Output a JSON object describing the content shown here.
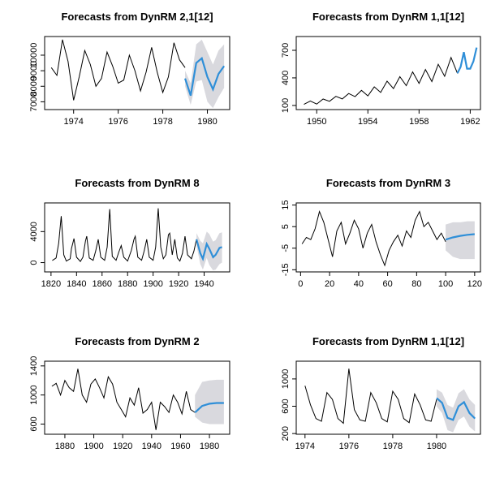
{
  "chart_data": [
    {
      "type": "line",
      "title": "Forecasts from DynRM 2,1[12]",
      "band_color": "#d9d9de",
      "xlim": [
        1972.7,
        1981.0
      ],
      "xticks": [
        1974,
        1976,
        1978,
        1980
      ],
      "ylim": [
        6500,
        11200
      ],
      "yticks": [
        7000,
        8000,
        9000,
        10000
      ],
      "series": [
        {
          "color": "#000000",
          "x": [
            1973,
            1973.25,
            1973.5,
            1973.75,
            1974,
            1974.25,
            1974.5,
            1974.75,
            1975,
            1975.25,
            1975.5,
            1975.75,
            1976,
            1976.25,
            1976.5,
            1976.75,
            1977,
            1977.25,
            1977.5,
            1977.75,
            1978,
            1978.25,
            1978.5,
            1978.75,
            1979
          ],
          "values": [
            9200,
            8700,
            11000,
            9600,
            7100,
            8600,
            10300,
            9400,
            8000,
            8500,
            10200,
            9300,
            8200,
            8400,
            10000,
            9000,
            7700,
            8900,
            10500,
            8900,
            7600,
            8600,
            10800,
            9700,
            9200
          ]
        },
        {
          "color": "#2f8fd8",
          "x": [
            1979,
            1979.25,
            1979.5,
            1979.75,
            1980,
            1980.25,
            1980.5,
            1980.75
          ],
          "values": [
            8500,
            7400,
            9500,
            9800,
            8600,
            7800,
            8800,
            9300
          ],
          "lower": [
            8000,
            6800,
            8300,
            8400,
            7000,
            6600,
            7300,
            7900
          ],
          "upper": [
            9000,
            8200,
            10700,
            11000,
            10200,
            9400,
            10300,
            10700
          ]
        }
      ]
    },
    {
      "type": "line",
      "title": "Forecasts from DynRM 1,1[12]",
      "band_color": "#d9d9de",
      "xlim": [
        1948.4,
        1962.8
      ],
      "xticks": [
        1950,
        1954,
        1958,
        1962
      ],
      "ylim": [
        55,
        850
      ],
      "yticks": [
        100,
        400,
        700
      ],
      "series": [
        {
          "color": "#000000",
          "x": [
            1949,
            1949.5,
            1950,
            1950.5,
            1951,
            1951.5,
            1952,
            1952.5,
            1953,
            1953.5,
            1954,
            1954.5,
            1955,
            1955.5,
            1956,
            1956.5,
            1957,
            1957.5,
            1958,
            1958.5,
            1959,
            1959.5,
            1960,
            1960.5,
            1961
          ],
          "values": [
            112,
            148,
            115,
            170,
            145,
            199,
            171,
            230,
            196,
            264,
            204,
            302,
            242,
            364,
            284,
            413,
            315,
            465,
            340,
            491,
            360,
            548,
            417,
            622,
            450
          ]
        },
        {
          "color": "#2f8fd8",
          "x": [
            1961,
            1961.25,
            1961.5,
            1961.75,
            1962,
            1962.25,
            1962.5
          ],
          "values": [
            450,
            520,
            680,
            500,
            500,
            580,
            730
          ]
        }
      ]
    },
    {
      "type": "line",
      "title": "Forecasts from DynRM 8",
      "band_color": "#d9d9de",
      "xlim": [
        1815,
        1960
      ],
      "xticks": [
        1820,
        1840,
        1860,
        1880,
        1900,
        1920,
        1940
      ],
      "ylim": [
        -1200,
        7700
      ],
      "yticks": [
        0,
        4000
      ],
      "series": [
        {
          "color": "#000000",
          "x": [
            1821,
            1824,
            1826,
            1828,
            1830,
            1832,
            1835,
            1836,
            1838,
            1840,
            1843,
            1845,
            1847,
            1848,
            1850,
            1853,
            1855,
            1857,
            1859,
            1862,
            1864,
            1866,
            1868,
            1871,
            1873,
            1875,
            1877,
            1880,
            1883,
            1885,
            1886,
            1888,
            1891,
            1893,
            1895,
            1897,
            1900,
            1902,
            1904,
            1906,
            1908,
            1910,
            1912,
            1913,
            1915,
            1917,
            1919,
            1921,
            1923,
            1925,
            1927,
            1930,
            1932,
            1934
          ],
          "values": [
            270,
            600,
            2500,
            6000,
            1000,
            200,
            500,
            1800,
            3100,
            700,
            150,
            700,
            2800,
            3400,
            600,
            300,
            1500,
            3000,
            700,
            300,
            2000,
            6900,
            800,
            300,
            1300,
            2200,
            700,
            200,
            1600,
            3000,
            3400,
            700,
            300,
            1500,
            3000,
            700,
            300,
            2000,
            7000,
            2000,
            500,
            1000,
            3600,
            3800,
            1000,
            3000,
            600,
            200,
            1200,
            3400,
            1000,
            500,
            1500,
            3000
          ]
        },
        {
          "color": "#2f8fd8",
          "x": [
            1934,
            1937,
            1939,
            1942,
            1944,
            1947,
            1949,
            1952,
            1954
          ],
          "values": [
            3000,
            1200,
            500,
            2400,
            1800,
            700,
            1000,
            1900,
            2000
          ],
          "lower": [
            2200,
            -200,
            -900,
            600,
            -300,
            -1000,
            -900,
            -200,
            0
          ],
          "upper": [
            3800,
            2800,
            2500,
            4000,
            3700,
            2700,
            2900,
            3800,
            3900
          ]
        }
      ]
    },
    {
      "type": "line",
      "title": "Forecasts from DynRM 3",
      "band_color": "#d9d9de",
      "xlim": [
        -3,
        124
      ],
      "xticks": [
        0,
        20,
        40,
        60,
        80,
        100,
        120
      ],
      "ylim": [
        -16,
        16
      ],
      "yticks": [
        -15,
        -5,
        5,
        15
      ],
      "series": [
        {
          "color": "#000000",
          "x": [
            1,
            4,
            7,
            10,
            13,
            16,
            19,
            22,
            25,
            28,
            31,
            34,
            37,
            40,
            43,
            46,
            49,
            52,
            55,
            58,
            61,
            64,
            67,
            70,
            73,
            76,
            79,
            82,
            85,
            88,
            91,
            94,
            97,
            100
          ],
          "values": [
            -3,
            0,
            -1,
            4,
            12,
            7,
            -1,
            -9,
            3,
            7,
            -3,
            2,
            8,
            4,
            -5,
            2,
            6,
            -2,
            -8,
            -13,
            -6,
            -2,
            1,
            -4,
            3,
            0,
            8,
            12,
            5,
            7,
            3,
            -1,
            2,
            -2
          ]
        },
        {
          "color": "#2f8fd8",
          "x": [
            100,
            105,
            110,
            115,
            120
          ],
          "values": [
            -1,
            0,
            0.7,
            1.2,
            1.5
          ],
          "lower": [
            -6,
            -9,
            -10,
            -10,
            -10
          ],
          "upper": [
            6,
            7,
            7,
            7.5,
            7.5
          ]
        }
      ]
    },
    {
      "type": "line",
      "title": "Forecasts from DynRM 2",
      "band_color": "#d9d9de",
      "xlim": [
        1866,
        1994
      ],
      "xticks": [
        1880,
        1900,
        1920,
        1940,
        1960,
        1980
      ],
      "ylim": [
        460,
        1465
      ],
      "yticks": [
        600,
        1000,
        1400
      ],
      "series": [
        {
          "color": "#000000",
          "x": [
            1871,
            1874,
            1877,
            1880,
            1883,
            1886,
            1889,
            1892,
            1895,
            1898,
            1901,
            1904,
            1907,
            1910,
            1913,
            1916,
            1919,
            1922,
            1925,
            1928,
            1931,
            1934,
            1937,
            1940,
            1943,
            1946,
            1949,
            1952,
            1955,
            1958,
            1961,
            1964,
            1967,
            1970
          ],
          "values": [
            1120,
            1160,
            1000,
            1200,
            1100,
            1050,
            1360,
            1000,
            900,
            1150,
            1220,
            1100,
            960,
            1250,
            1150,
            900,
            800,
            700,
            960,
            860,
            1100,
            750,
            800,
            900,
            520,
            900,
            840,
            760,
            1000,
            900,
            740,
            1050,
            800,
            760
          ]
        },
        {
          "color": "#2f8fd8",
          "x": [
            1970,
            1975,
            1980,
            1985,
            1990
          ],
          "values": [
            760,
            850,
            880,
            890,
            890
          ],
          "lower": [
            700,
            620,
            600,
            600,
            600
          ],
          "upper": [
            1000,
            1180,
            1200,
            1210,
            1210
          ]
        }
      ]
    },
    {
      "type": "line",
      "title": "Forecasts from DynRM 1,1[12]",
      "band_color": "#d9d9de",
      "xlim": [
        1973.6,
        1982.0
      ],
      "xticks": [
        1974,
        1976,
        1978,
        1980
      ],
      "ylim": [
        190,
        1260
      ],
      "yticks": [
        200,
        600,
        1000
      ],
      "series": [
        {
          "color": "#000000",
          "x": [
            1974,
            1974.25,
            1974.5,
            1974.75,
            1975,
            1975.25,
            1975.5,
            1975.75,
            1976,
            1976.25,
            1976.5,
            1976.75,
            1977,
            1977.25,
            1977.5,
            1977.75,
            1978,
            1978.25,
            1978.5,
            1978.75,
            1979,
            1979.25,
            1979.5,
            1979.75,
            1980
          ],
          "values": [
            900,
            620,
            420,
            380,
            800,
            700,
            420,
            350,
            1150,
            550,
            400,
            380,
            800,
            650,
            420,
            370,
            820,
            700,
            420,
            360,
            780,
            620,
            400,
            380,
            700
          ]
        },
        {
          "color": "#2f8fd8",
          "x": [
            1980,
            1980.25,
            1980.5,
            1980.75,
            1981,
            1981.25,
            1981.5,
            1981.75
          ],
          "values": [
            720,
            650,
            430,
            400,
            600,
            660,
            500,
            420
          ],
          "lower": [
            600,
            500,
            250,
            220,
            400,
            450,
            300,
            230
          ],
          "upper": [
            850,
            800,
            620,
            580,
            790,
            850,
            700,
            620
          ]
        }
      ]
    }
  ]
}
